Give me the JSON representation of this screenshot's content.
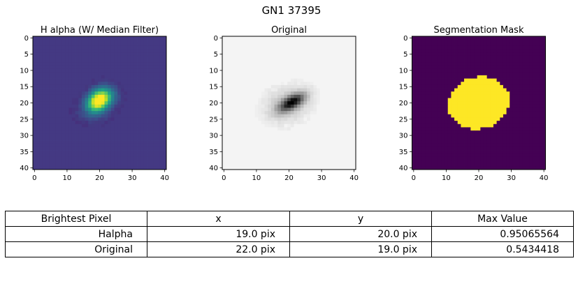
{
  "figure": {
    "title": "GN1 37395"
  },
  "chart_data": [
    {
      "type": "heatmap",
      "title": "H alpha (W/ Median Filter)",
      "colormap": "viridis",
      "xlim": [
        0,
        40
      ],
      "ylim": [
        40,
        0
      ],
      "xticks": [
        0,
        10,
        20,
        30,
        40
      ],
      "yticks": [
        0,
        5,
        10,
        15,
        20,
        25,
        30,
        35,
        40
      ],
      "background": "#443983",
      "blobs": [
        {
          "x": 19.5,
          "y": 19.5,
          "sx": 2.4,
          "sy": 2.0,
          "rot": -35,
          "amp": 0.95
        },
        {
          "x": 22,
          "y": 17.5,
          "sx": 2.6,
          "sy": 2.2,
          "rot": 0,
          "amp": 0.35
        },
        {
          "x": 18,
          "y": 22.5,
          "sx": 3.5,
          "sy": 2.5,
          "rot": 0,
          "amp": 0.15
        }
      ],
      "peak": {
        "x": 19,
        "y": 20,
        "value": 0.95065564
      }
    },
    {
      "type": "heatmap",
      "title": "Original",
      "colormap": "gray_r",
      "xlim": [
        0,
        40
      ],
      "ylim": [
        40,
        0
      ],
      "xticks": [
        0,
        10,
        20,
        30,
        40
      ],
      "yticks": [
        0,
        5,
        10,
        15,
        20,
        25,
        30,
        35,
        40
      ],
      "background": "#f4f4f4",
      "blobs": [
        {
          "x": 21,
          "y": 19.8,
          "sx": 3.0,
          "sy": 1.3,
          "rot": -30,
          "amp": 0.85
        },
        {
          "x": 19.5,
          "y": 20.5,
          "sx": 4.5,
          "sy": 3.2,
          "rot": -20,
          "amp": 0.25
        }
      ],
      "peak": {
        "x": 22,
        "y": 19,
        "value": 0.5434418
      }
    },
    {
      "type": "heatmap",
      "title": "Segmentation Mask",
      "colormap": "binary-viridis",
      "xlim": [
        0,
        40
      ],
      "ylim": [
        40,
        0
      ],
      "xticks": [
        0,
        10,
        20,
        30,
        40
      ],
      "yticks": [
        0,
        5,
        10,
        15,
        20,
        25,
        30,
        35,
        40
      ],
      "colors": {
        "off": "#440154",
        "on": "#fde725"
      },
      "mask_ellipse": {
        "cx": 20,
        "cy": 20,
        "rx": 9.5,
        "ry": 8,
        "rot": -15
      }
    }
  ],
  "table": {
    "headers": [
      "Brightest Pixel",
      "x",
      "y",
      "Max Value"
    ],
    "rows": [
      [
        "Halpha",
        "19.0 pix",
        "20.0 pix",
        "0.95065564"
      ],
      [
        "Original",
        "22.0 pix",
        "19.0 pix",
        "0.5434418"
      ]
    ]
  }
}
